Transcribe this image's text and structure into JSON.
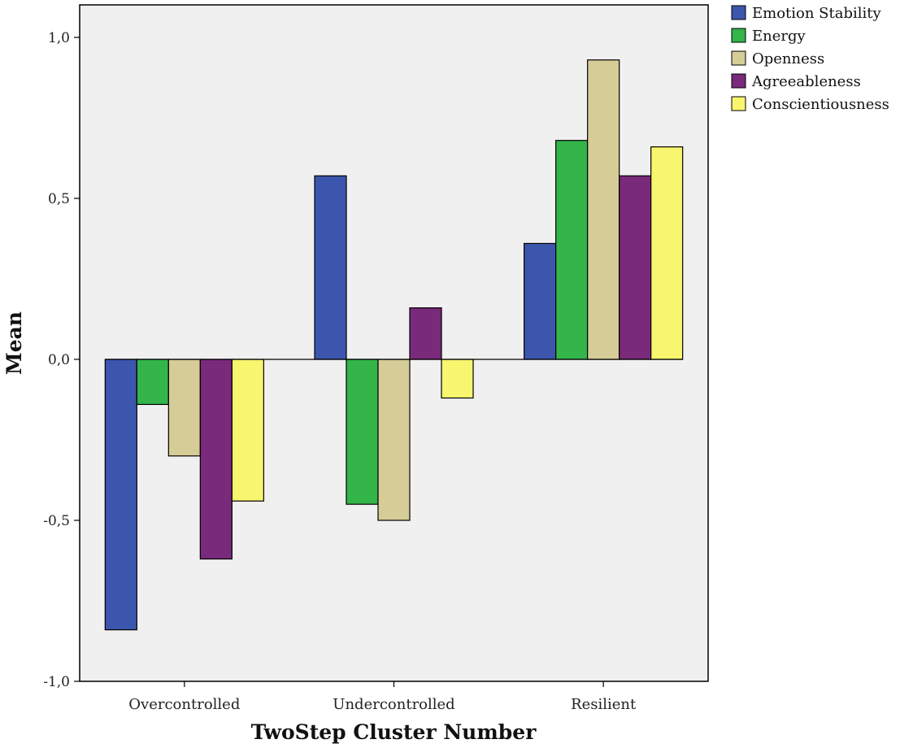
{
  "chart_data": {
    "type": "bar",
    "title": "",
    "xlabel": "TwoStep Cluster Number",
    "ylabel": "Mean",
    "ylim": [
      -1.0,
      1.0
    ],
    "yticks": [
      -1.0,
      -0.5,
      0.0,
      0.5,
      1.0
    ],
    "ytick_labels": [
      "-1,0",
      "-0,5",
      "0,0",
      "0,5",
      "1,0"
    ],
    "categories": [
      "Overcontrolled",
      "Undercontrolled",
      "Resilient"
    ],
    "grid": false,
    "legend_position": "top-right, outside plot",
    "series": [
      {
        "name": "Emotion Stability",
        "color": "#3c56ad",
        "values": [
          -0.84,
          0.57,
          0.36
        ]
      },
      {
        "name": "Energy",
        "color": "#33b54a",
        "values": [
          -0.14,
          -0.45,
          0.68
        ]
      },
      {
        "name": "Openness",
        "color": "#d6cc97",
        "values": [
          -0.3,
          -0.5,
          0.93
        ]
      },
      {
        "name": "Agreeableness",
        "color": "#7a2a7a",
        "values": [
          -0.62,
          0.16,
          0.57
        ]
      },
      {
        "name": "Conscientiousness",
        "color": "#f8f56f",
        "values": [
          -0.44,
          -0.12,
          0.66
        ]
      }
    ]
  },
  "colors": {
    "plot_background": "#f0f0f0",
    "axis": "#000000"
  }
}
